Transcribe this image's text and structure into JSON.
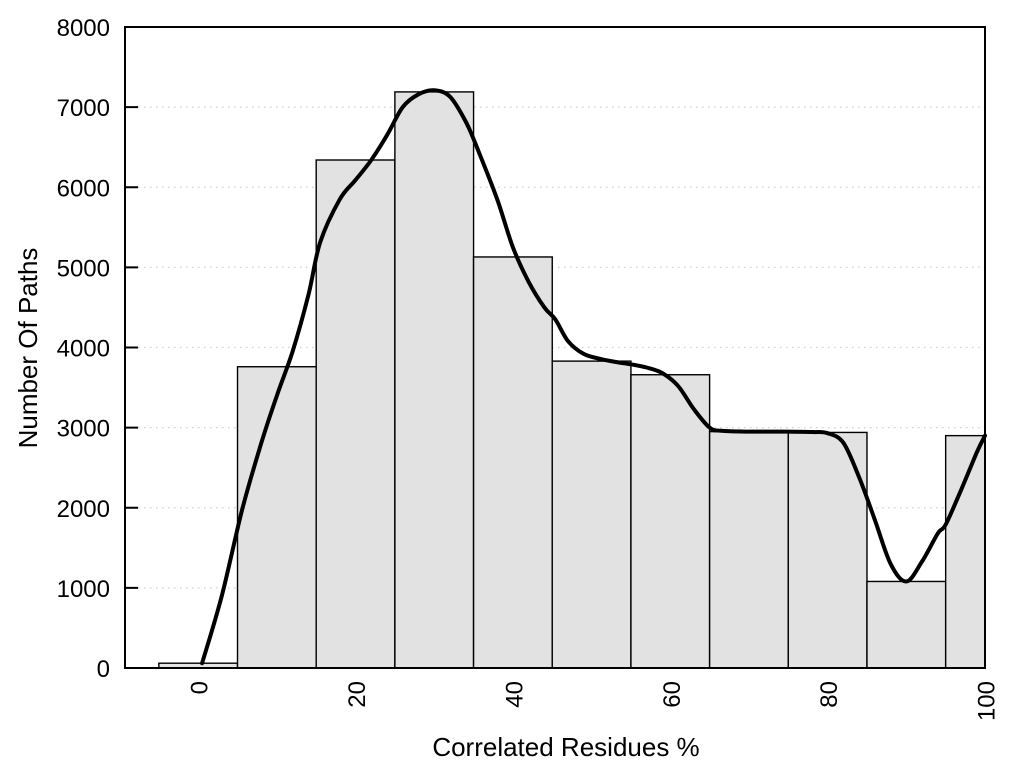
{
  "figure": {
    "background": "#ffffff"
  },
  "chart_data": {
    "type": "bar",
    "subtype": "histogram-with-density-curve",
    "title": "",
    "xlabel": "Correlated Residues %",
    "ylabel": "Number Of Paths",
    "xlim": [
      -9.3,
      100
    ],
    "ylim": [
      0,
      8000
    ],
    "xticks": [
      0,
      20,
      40,
      60,
      80,
      100
    ],
    "yticks": [
      0,
      1000,
      2000,
      3000,
      4000,
      5000,
      6000,
      7000,
      8000
    ],
    "grid": "horizontal dotted lines at every 1000",
    "legend_position": "none",
    "bin_width": 10,
    "bin_centers": [
      0,
      10,
      20,
      30,
      40,
      50,
      60,
      70,
      80,
      90,
      100
    ],
    "values": [
      60,
      3760,
      6340,
      7190,
      5130,
      3830,
      3660,
      2950,
      2940,
      1080,
      2900
    ],
    "curve": {
      "x": [
        0.5,
        3,
        5.6,
        8,
        10,
        12,
        14,
        15.5,
        18,
        20,
        22,
        24,
        26,
        28,
        30,
        32,
        34,
        35.5,
        38,
        40,
        42,
        44,
        45.4,
        47,
        49,
        51,
        53,
        55,
        57,
        59,
        61,
        63,
        65,
        66.5,
        70,
        74,
        78,
        80,
        82,
        84,
        86,
        88,
        90,
        92,
        94,
        95,
        97,
        99,
        100
      ],
      "y": [
        60,
        900,
        1980,
        2800,
        3400,
        3950,
        4650,
        5310,
        5850,
        6090,
        6340,
        6650,
        7000,
        7160,
        7210,
        7130,
        6820,
        6480,
        5850,
        5250,
        4820,
        4500,
        4350,
        4080,
        3920,
        3860,
        3820,
        3790,
        3750,
        3680,
        3520,
        3230,
        3000,
        2960,
        2950,
        2950,
        2945,
        2930,
        2810,
        2380,
        1850,
        1300,
        1080,
        1330,
        1680,
        1790,
        2230,
        2700,
        2900
      ]
    },
    "colors": {
      "bar_fill": "#e2e2e2",
      "bar_stroke": "#000000",
      "curve": "#000000",
      "grid": "#cfcfcf",
      "frame": "#000000",
      "text": "#000000"
    }
  }
}
